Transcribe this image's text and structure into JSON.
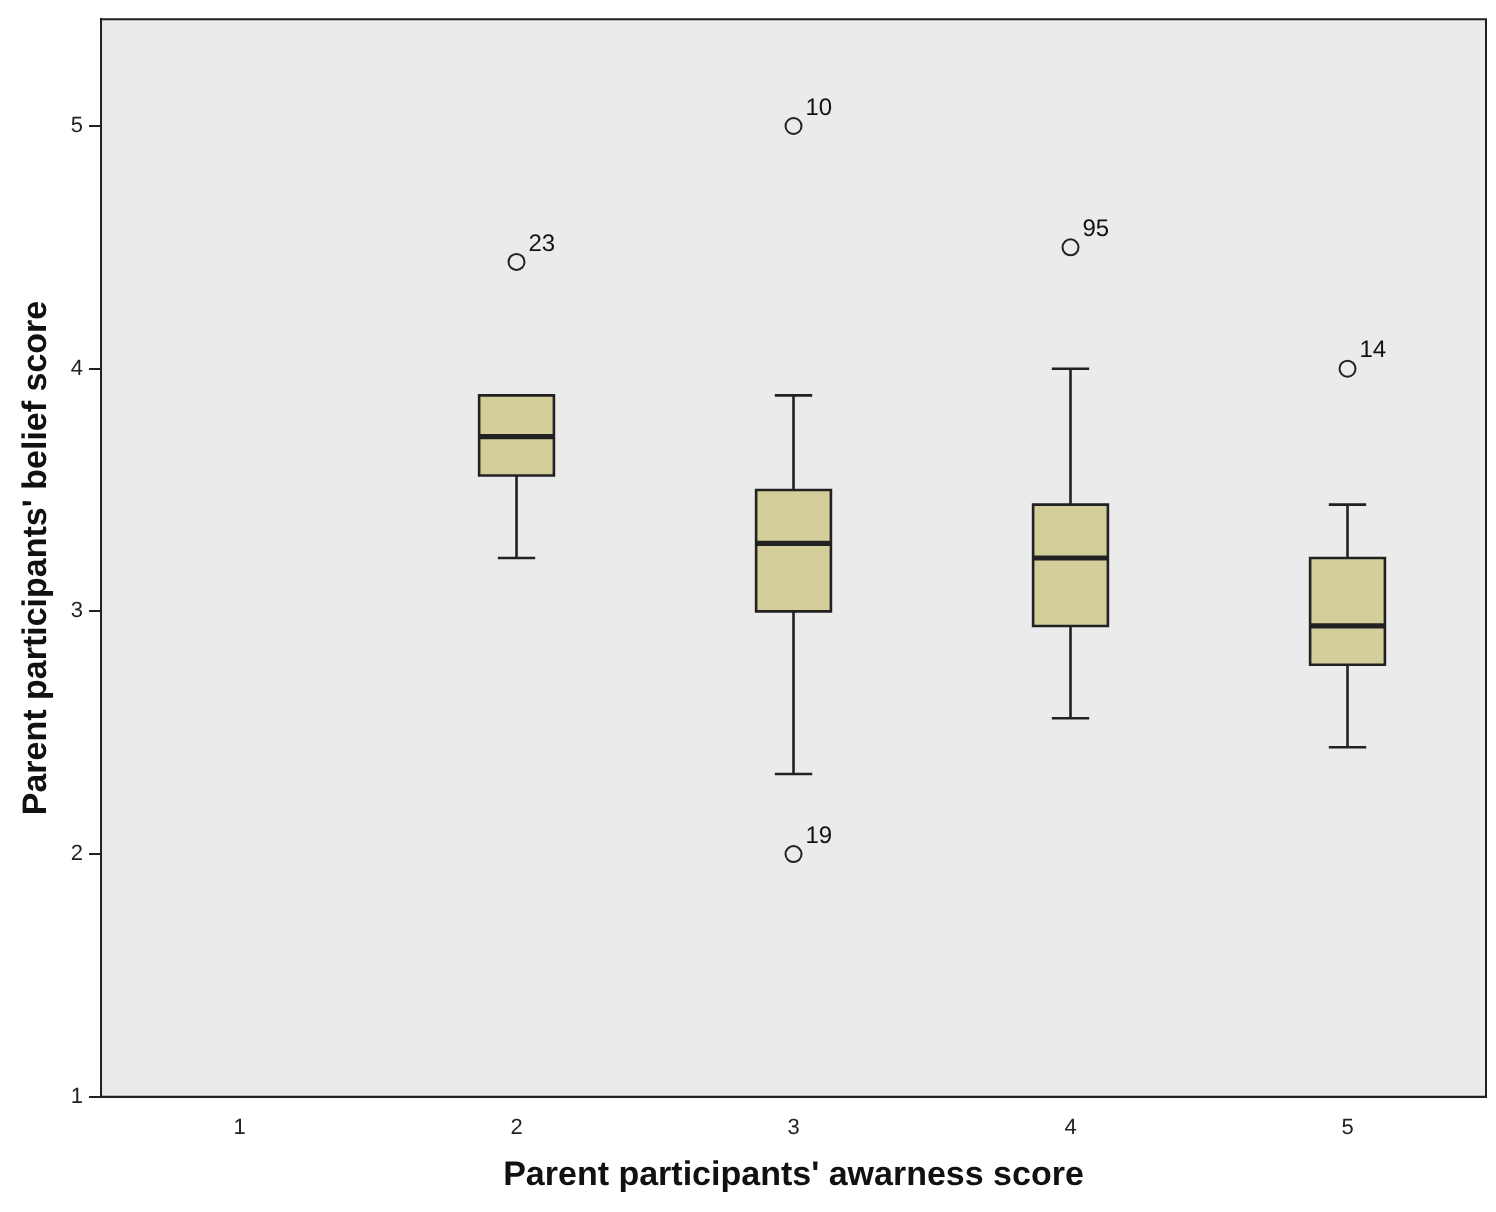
{
  "chart_data": {
    "type": "box",
    "xlabel": "Parent participants' awarness score",
    "ylabel": "Parent participants' belief score",
    "categories": [
      "1",
      "2",
      "3",
      "4",
      "5"
    ],
    "boxes": [
      null,
      {
        "low": 3.22,
        "q1": 3.56,
        "median": 3.72,
        "q3": 3.89,
        "high": 3.89,
        "outliers": [
          4.44
        ]
      },
      {
        "low": 2.33,
        "q1": 3.0,
        "median": 3.28,
        "q3": 3.5,
        "high": 3.89,
        "outliers": [
          5,
          2
        ]
      },
      {
        "low": 2.56,
        "q1": 2.94,
        "median": 3.22,
        "q3": 3.44,
        "high": 4.0,
        "outliers": [
          4.5
        ]
      },
      {
        "low": 2.44,
        "q1": 2.78,
        "median": 2.94,
        "q3": 3.22,
        "high": 3.44,
        "outliers": [
          4
        ]
      }
    ],
    "color": "#d3ce9a",
    "ylim": [
      1,
      5.44
    ],
    "yticks": [
      1,
      2,
      3,
      4,
      5
    ],
    "grid": false,
    "legend": false,
    "marker": "circle",
    "annotations": [
      "23",
      "10",
      "19",
      "95",
      "14"
    ]
  }
}
